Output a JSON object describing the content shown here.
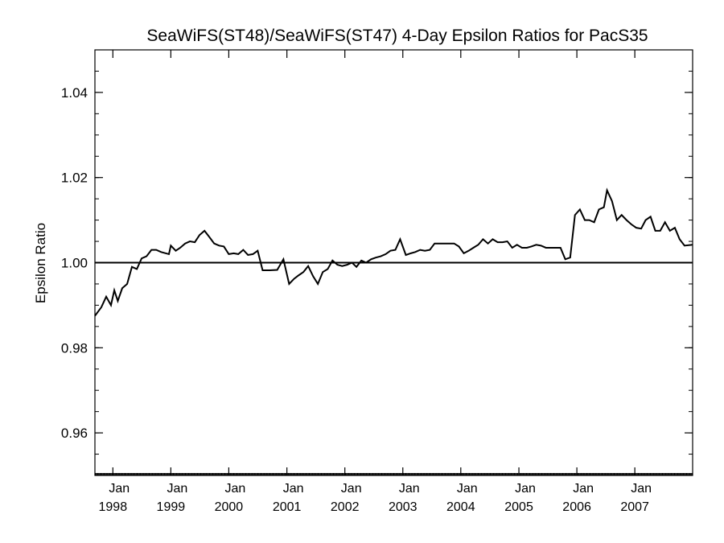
{
  "chart_data": {
    "type": "line",
    "title": "SeaWiFS(ST48)/SeaWiFS(ST47) 4-Day Epsilon Ratios for PacS35",
    "xlabel": "",
    "ylabel": "Epsilon Ratio",
    "xlim": [
      "1997-09-10",
      "2007-12-31"
    ],
    "ylim": [
      0.95,
      1.05
    ],
    "yticks": [
      "0.96",
      "0.98",
      "1.00",
      "1.02",
      "1.04"
    ],
    "xticks": [
      {
        "date": "1998-01-01",
        "month": "Jan",
        "year": "1998"
      },
      {
        "date": "1999-01-01",
        "month": "Jan",
        "year": "1999"
      },
      {
        "date": "2000-01-01",
        "month": "Jan",
        "year": "2000"
      },
      {
        "date": "2001-01-01",
        "month": "Jan",
        "year": "2001"
      },
      {
        "date": "2002-01-01",
        "month": "Jan",
        "year": "2002"
      },
      {
        "date": "2003-01-01",
        "month": "Jan",
        "year": "2003"
      },
      {
        "date": "2004-01-01",
        "month": "Jan",
        "year": "2004"
      },
      {
        "date": "2005-01-01",
        "month": "Jan",
        "year": "2005"
      },
      {
        "date": "2006-01-01",
        "month": "Jan",
        "year": "2006"
      },
      {
        "date": "2007-01-01",
        "month": "Jan",
        "year": "2007"
      }
    ],
    "reference_line": 1.0,
    "grid": false,
    "series": [
      {
        "name": "",
        "color": "#000000",
        "points": [
          [
            "1997-09-10",
            0.9875
          ],
          [
            "1997-10-20",
            0.9895
          ],
          [
            "1997-11-20",
            0.992
          ],
          [
            "1997-12-20",
            0.99
          ],
          [
            "1998-01-10",
            0.9935
          ],
          [
            "1998-02-01",
            0.991
          ],
          [
            "1998-03-01",
            0.994
          ],
          [
            "1998-04-01",
            0.995
          ],
          [
            "1998-05-01",
            0.999
          ],
          [
            "1998-06-01",
            0.9985
          ],
          [
            "1998-07-01",
            1.001
          ],
          [
            "1998-08-01",
            1.0015
          ],
          [
            "1998-09-01",
            1.003
          ],
          [
            "1998-10-01",
            1.003
          ],
          [
            "1998-11-01",
            1.0025
          ],
          [
            "1998-12-20",
            1.002
          ],
          [
            "1999-01-01",
            1.004
          ],
          [
            "1999-02-01",
            1.0028
          ],
          [
            "1999-03-01",
            1.0035
          ],
          [
            "1999-04-01",
            1.0045
          ],
          [
            "1999-05-01",
            1.005
          ],
          [
            "1999-06-01",
            1.0048
          ],
          [
            "1999-07-01",
            1.0065
          ],
          [
            "1999-08-01",
            1.0075
          ],
          [
            "1999-09-01",
            1.006
          ],
          [
            "1999-10-01",
            1.0045
          ],
          [
            "1999-11-01",
            1.004
          ],
          [
            "1999-12-01",
            1.0038
          ],
          [
            "2000-01-01",
            1.002
          ],
          [
            "2000-02-01",
            1.0022
          ],
          [
            "2000-03-01",
            1.002
          ],
          [
            "2000-04-01",
            1.003
          ],
          [
            "2000-05-01",
            1.0018
          ],
          [
            "2000-06-01",
            1.002
          ],
          [
            "2000-07-01",
            1.0028
          ],
          [
            "2000-08-01",
            0.9982
          ],
          [
            "2000-09-15",
            0.9982
          ],
          [
            "2000-11-01",
            0.9983
          ],
          [
            "2000-12-10",
            1.0008
          ],
          [
            "2001-01-15",
            0.995
          ],
          [
            "2001-02-15",
            0.9962
          ],
          [
            "2001-03-15",
            0.997
          ],
          [
            "2001-04-15",
            0.9978
          ],
          [
            "2001-05-15",
            0.9992
          ],
          [
            "2001-06-15",
            0.9968
          ],
          [
            "2001-07-15",
            0.995
          ],
          [
            "2001-08-15",
            0.9978
          ],
          [
            "2001-09-15",
            0.9985
          ],
          [
            "2001-10-15",
            1.0005
          ],
          [
            "2001-11-15",
            0.9995
          ],
          [
            "2001-12-15",
            0.9992
          ],
          [
            "2002-01-15",
            0.9995
          ],
          [
            "2002-02-15",
            1.0
          ],
          [
            "2002-03-15",
            0.999
          ],
          [
            "2002-04-15",
            1.0005
          ],
          [
            "2002-05-15",
            1.0
          ],
          [
            "2002-06-15",
            1.0008
          ],
          [
            "2002-07-15",
            1.0012
          ],
          [
            "2002-08-15",
            1.0015
          ],
          [
            "2002-09-15",
            1.002
          ],
          [
            "2002-10-15",
            1.0028
          ],
          [
            "2002-11-15",
            1.003
          ],
          [
            "2002-12-15",
            1.0055
          ],
          [
            "2003-01-20",
            1.0018
          ],
          [
            "2003-02-20",
            1.0022
          ],
          [
            "2003-03-20",
            1.0025
          ],
          [
            "2003-04-20",
            1.003
          ],
          [
            "2003-05-20",
            1.0028
          ],
          [
            "2003-06-20",
            1.003
          ],
          [
            "2003-07-20",
            1.0045
          ],
          [
            "2003-08-20",
            1.0045
          ],
          [
            "2003-09-20",
            1.0045
          ],
          [
            "2003-10-20",
            1.0045
          ],
          [
            "2003-11-20",
            1.0045
          ],
          [
            "2003-12-20",
            1.0038
          ],
          [
            "2004-01-20",
            1.0022
          ],
          [
            "2004-02-20",
            1.0028
          ],
          [
            "2004-03-20",
            1.0035
          ],
          [
            "2004-04-20",
            1.0042
          ],
          [
            "2004-05-20",
            1.0055
          ],
          [
            "2004-06-20",
            1.0045
          ],
          [
            "2004-07-20",
            1.0055
          ],
          [
            "2004-08-20",
            1.0048
          ],
          [
            "2004-09-20",
            1.0048
          ],
          [
            "2004-10-20",
            1.005
          ],
          [
            "2004-11-20",
            1.0035
          ],
          [
            "2004-12-20",
            1.0042
          ],
          [
            "2005-01-20",
            1.0035
          ],
          [
            "2005-02-20",
            1.0035
          ],
          [
            "2005-03-20",
            1.0038
          ],
          [
            "2005-04-20",
            1.0042
          ],
          [
            "2005-05-20",
            1.004
          ],
          [
            "2005-06-20",
            1.0035
          ],
          [
            "2005-07-20",
            1.0035
          ],
          [
            "2005-08-20",
            1.0035
          ],
          [
            "2005-09-20",
            1.0035
          ],
          [
            "2005-10-20",
            1.0008
          ],
          [
            "2005-11-20",
            1.0012
          ],
          [
            "2005-12-20",
            1.0112
          ],
          [
            "2006-01-20",
            1.0125
          ],
          [
            "2006-02-20",
            1.01
          ],
          [
            "2006-03-20",
            1.01
          ],
          [
            "2006-04-20",
            1.0095
          ],
          [
            "2006-05-20",
            1.0125
          ],
          [
            "2006-06-20",
            1.013
          ],
          [
            "2006-07-10",
            1.017
          ],
          [
            "2006-08-10",
            1.0145
          ],
          [
            "2006-09-10",
            1.01
          ],
          [
            "2006-10-10",
            1.0112
          ],
          [
            "2006-11-10",
            1.01
          ],
          [
            "2006-12-10",
            1.009
          ],
          [
            "2007-01-10",
            1.0082
          ],
          [
            "2007-02-10",
            1.008
          ],
          [
            "2007-03-10",
            1.01
          ],
          [
            "2007-04-10",
            1.0108
          ],
          [
            "2007-05-10",
            1.0075
          ],
          [
            "2007-06-10",
            1.0075
          ],
          [
            "2007-07-10",
            1.0095
          ],
          [
            "2007-08-10",
            1.0075
          ],
          [
            "2007-09-10",
            1.0082
          ],
          [
            "2007-10-10",
            1.0055
          ],
          [
            "2007-11-10",
            1.004
          ],
          [
            "2007-12-31",
            1.0042
          ]
        ]
      }
    ]
  }
}
